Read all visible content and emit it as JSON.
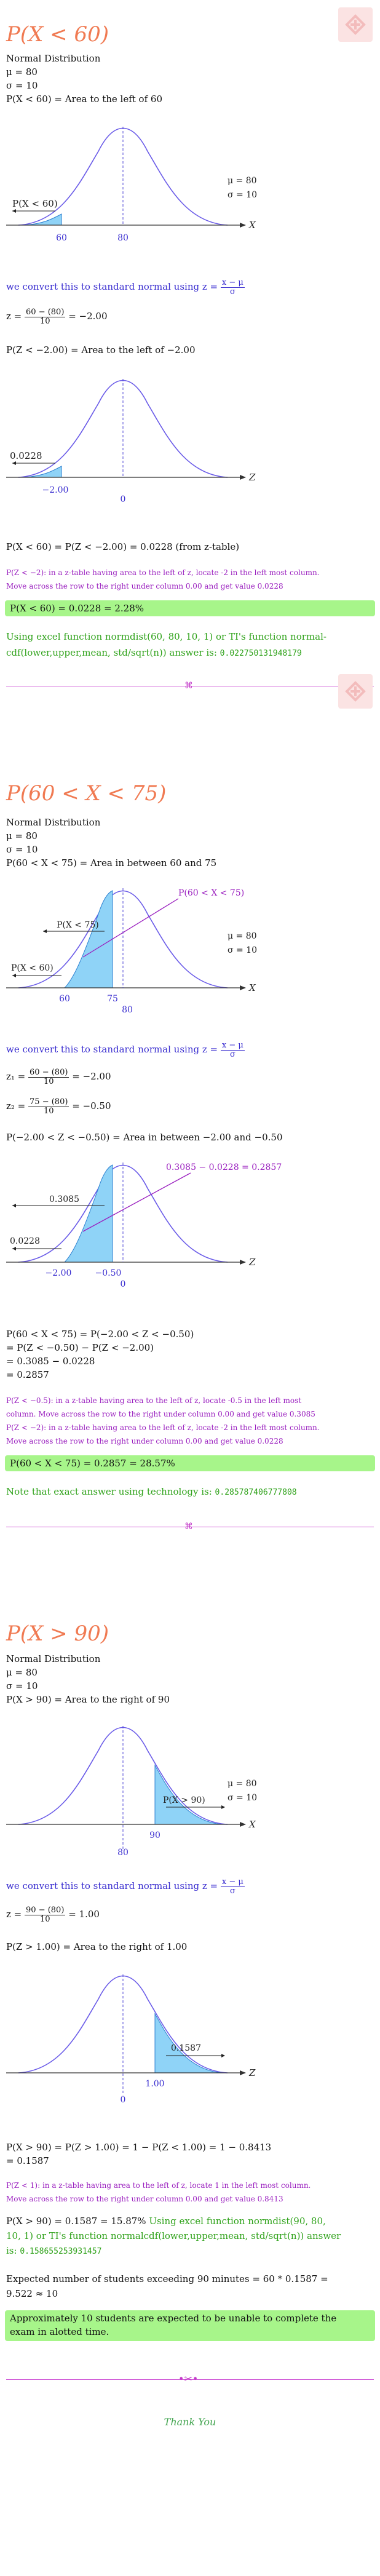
{
  "section1": {
    "heading": "P(X < 60)",
    "lines": [
      "Normal Distribution",
      "μ = 80",
      "σ = 10",
      "P(X < 60) = Area to the left of 60"
    ],
    "chart1": {
      "mu_label": "μ = 80",
      "sigma_label": "σ = 10",
      "region_label": "P(X < 60)",
      "tick_left": "60",
      "tick_mean": "80",
      "axis": "X"
    },
    "convert_text": "we convert this to standard normal using",
    "z_formula": "z = ",
    "z_num": "x − μ",
    "z_den": "σ",
    "z_calc_prefix": "z = ",
    "z_calc_num": "60 − (80)",
    "z_calc_den": "10",
    "z_calc_result": "= −2.00",
    "pz_line": "P(Z < −2.00) = Area to the left of −2.00",
    "chart2": {
      "value_label": "0.0228",
      "tick_left": "−2.00",
      "tick_mean": "0",
      "axis": "Z"
    },
    "result_line": "P(X < 60) = P(Z < −2.00) = 0.0228 (from z-table)",
    "note1": "P(Z < −2): in a z-table having area to the left of z, locate -2 in the left most column.",
    "note2": "Move across the row to the right under column 0.00 and get value 0.0228",
    "answer": "P(X < 60) = 0.0228 = 2.28%",
    "excel1": "Using excel function normdist(60, 80, 10, 1) or TI's function normal-",
    "excel2": "cdf(lower,upper,mean, std/sqrt(n)) answer is:",
    "excel_value": "0.022750131948179"
  },
  "section2": {
    "heading": "P(60 < X < 75)",
    "lines": [
      "Normal Distribution",
      "μ = 80",
      "σ = 10",
      "P(60 < X < 75) = Area in between 60 and 75"
    ],
    "chart1": {
      "mu_label": "μ = 80",
      "sigma_label": "σ = 10",
      "region_top": "P(60 < X < 75)",
      "label_a": "P(X < 75)",
      "label_b": "P(X < 60)",
      "tick_left": "60",
      "tick_mid": "75",
      "tick_mean": "80",
      "axis": "X"
    },
    "convert_text": "we convert this to standard normal using",
    "z1_prefix": "z₁ = ",
    "z1_num": "60 − (80)",
    "z1_den": "10",
    "z1_result": "= −2.00",
    "z2_prefix": "z₂ = ",
    "z2_num": "75 − (80)",
    "z2_den": "10",
    "z2_result": "= −0.50",
    "pz_line": "P(−2.00 < Z < −0.50) = Area in between −2.00 and −0.50",
    "chart2": {
      "region_top": "0.3085 − 0.0228 = 0.2857",
      "label_a": "0.3085",
      "label_b": "0.0228",
      "tick_left": "−2.00",
      "tick_mid": "−0.50",
      "tick_mean": "0",
      "axis": "Z"
    },
    "calc": [
      "P(60 < X < 75) = P(−2.00 < Z < −0.50)",
      "= P(Z < −0.50) − P(Z < −2.00)",
      "= 0.3085 − 0.0228",
      "= 0.2857"
    ],
    "note1": "P(Z < −0.5): in a z-table having area to the left of z, locate -0.5 in the left most",
    "note2": "column. Move across the row to the right under column 0.00 and get value 0.3085",
    "note3": "P(Z < −2): in a z-table having area to the left of z, locate -2 in the left most column.",
    "note4": "Move across the row to the right under column 0.00 and get value 0.0228",
    "answer": "P(60 < X < 75) = 0.2857 = 28.57%",
    "tech_text": "Note that exact answer using technology is:",
    "tech_value": "0.285787406777808"
  },
  "section3": {
    "heading": "P(X > 90)",
    "lines": [
      "Normal Distribution",
      "μ = 80",
      "σ = 10",
      "P(X > 90) = Area to the right of 90"
    ],
    "chart1": {
      "mu_label": "μ = 80",
      "sigma_label": "σ = 10",
      "region_label": "P(X > 90)",
      "tick_mean": "80",
      "tick_right": "90",
      "axis": "X"
    },
    "convert_text": "we convert this to standard normal using",
    "z_calc_prefix": "z = ",
    "z_calc_num": "90 − (80)",
    "z_calc_den": "10",
    "z_calc_result": "= 1.00",
    "pz_line": "P(Z > 1.00) = Area to the right of 1.00",
    "chart2": {
      "value_label": "0.1587",
      "tick_mean": "0",
      "tick_right": "1.00",
      "axis": "Z"
    },
    "calc1": "P(X > 90) = P(Z > 1.00) = 1 − P(Z < 1.00) = 1 − 0.8413",
    "calc2": "= 0.1587",
    "note1": "P(Z < 1): in a z-table having area to the left of z, locate 1 in the left most column.",
    "note2": "Move across the row to the right under column 0.00 and get value 0.8413",
    "result1": "P(X > 90) = 0.1587 = 15.87%",
    "excel1": "Using excel function normdist(90, 80,",
    "excel2": "10, 1) or TI's function normalcdf(lower,upper,mean, std/sqrt(n)) answer",
    "excel3": "is:",
    "excel_value": "0.158655253931457",
    "expected1": "Expected number of students exceeding 90 minutes = 60 * 0.1587 =",
    "expected2": "9.522 ≈ 10",
    "answer1": "Approximately 10 students are expected to be unable to complete the",
    "answer2": "exam in alotted time."
  },
  "footer": {
    "thanks": "Thank You"
  }
}
